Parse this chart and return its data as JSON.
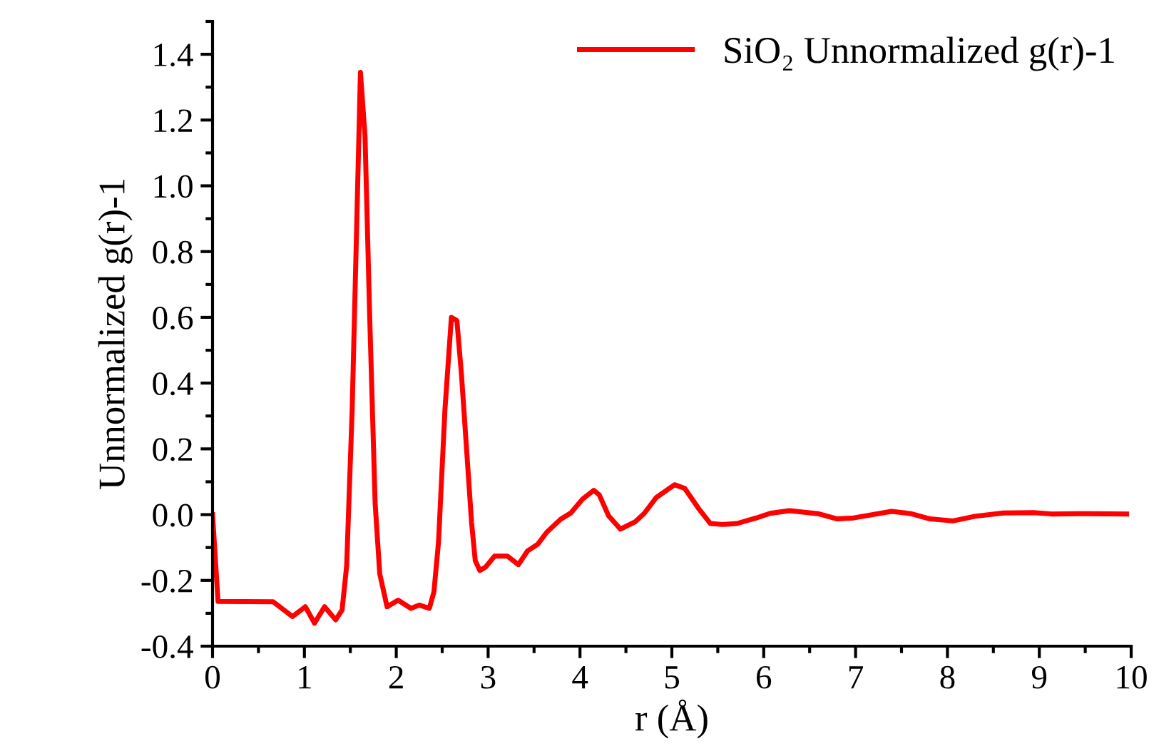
{
  "chart_data": {
    "type": "line",
    "xlabel": "r (Å)",
    "ylabel": "Unnormalized g(r)-1",
    "xlim": [
      0,
      10
    ],
    "ylim": [
      -0.4,
      1.5
    ],
    "xticks": [
      0,
      1,
      2,
      3,
      4,
      5,
      6,
      7,
      8,
      9,
      10
    ],
    "yticks": [
      {
        "value": -0.4,
        "label": "-0.4"
      },
      {
        "value": -0.2,
        "label": "-0.2"
      },
      {
        "value": 0.0,
        "label": "0.0"
      },
      {
        "value": 0.2,
        "label": "0.2"
      },
      {
        "value": 0.4,
        "label": "0.4"
      },
      {
        "value": 0.6,
        "label": "0.6"
      },
      {
        "value": 0.8,
        "label": "0.8"
      },
      {
        "value": 1.0,
        "label": "1.0"
      },
      {
        "value": 1.2,
        "label": "1.2"
      },
      {
        "value": 1.4,
        "label": "1.4"
      }
    ],
    "grid": false,
    "legend": "top right",
    "marker": "none",
    "line_style": "solid",
    "series": [
      {
        "name": "SiO₂ Unnormalized g(r)-1",
        "color": "#ff0000",
        "x": [
          0,
          0.06,
          0.66,
          0.87,
          1.01,
          1.11,
          1.22,
          1.34,
          1.41,
          1.46,
          1.52,
          1.61,
          1.66,
          1.71,
          1.77,
          1.82,
          1.9,
          2.02,
          2.16,
          2.25,
          2.36,
          2.41,
          2.46,
          2.53,
          2.6,
          2.66,
          2.71,
          2.82,
          2.86,
          2.91,
          2.97,
          3.07,
          3.21,
          3.33,
          3.43,
          3.54,
          3.64,
          3.79,
          3.9,
          4.03,
          4.15,
          4.21,
          4.31,
          4.44,
          4.6,
          4.7,
          4.83,
          5.03,
          5.14,
          5.29,
          5.42,
          5.55,
          5.71,
          5.92,
          6.07,
          6.28,
          6.59,
          6.8,
          6.98,
          7.39,
          7.6,
          7.81,
          8.06,
          8.3,
          8.61,
          8.94,
          9.13,
          9.44,
          9.95
        ],
        "values": [
          0.0,
          -0.264,
          -0.265,
          -0.31,
          -0.28,
          -0.33,
          -0.28,
          -0.32,
          -0.29,
          -0.155,
          0.32,
          1.345,
          1.15,
          0.61,
          0.035,
          -0.18,
          -0.28,
          -0.26,
          -0.285,
          -0.275,
          -0.285,
          -0.235,
          -0.083,
          0.32,
          0.6,
          0.59,
          0.425,
          -0.025,
          -0.14,
          -0.17,
          -0.16,
          -0.126,
          -0.126,
          -0.152,
          -0.11,
          -0.09,
          -0.053,
          -0.014,
          0.005,
          0.048,
          0.074,
          0.06,
          -0.003,
          -0.044,
          -0.022,
          0.004,
          0.052,
          0.091,
          0.08,
          0.019,
          -0.027,
          -0.03,
          -0.027,
          -0.01,
          0.004,
          0.012,
          0.003,
          -0.013,
          -0.01,
          0.01,
          0.003,
          -0.013,
          -0.019,
          -0.005,
          0.005,
          0.006,
          0.002,
          0.003,
          0.002
        ]
      }
    ]
  }
}
